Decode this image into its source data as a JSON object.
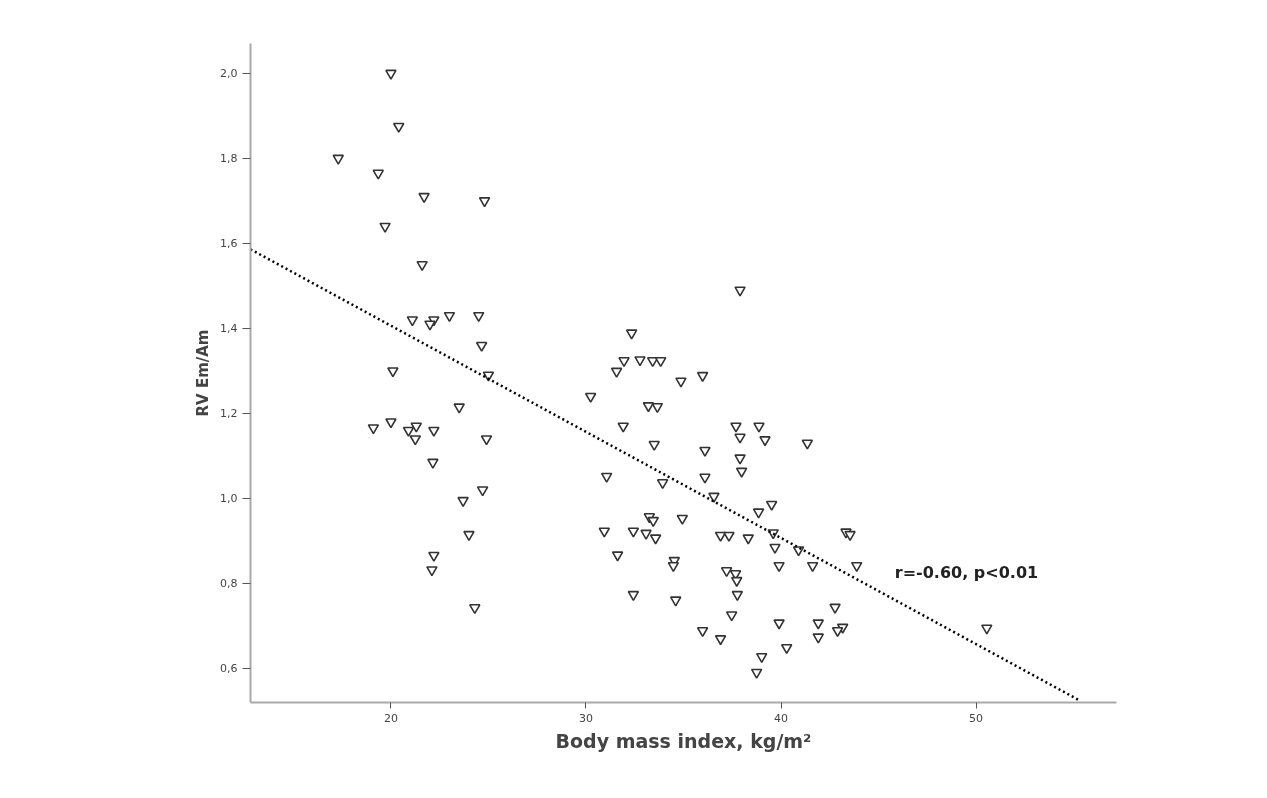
{
  "chart_data": {
    "type": "scatter",
    "xlabel": "Body mass index, kg/m²",
    "ylabel": "RV Em/Am",
    "annotations": [
      "r=-0.60, p<0.01"
    ],
    "xlim": [
      12.8,
      57.2
    ],
    "ylim": [
      0.52,
      2.07
    ],
    "xticks": [
      20,
      30,
      40,
      50
    ],
    "yticks": [
      {
        "value": 0.6,
        "label": "0,6"
      },
      {
        "value": 0.8,
        "label": "0,8"
      },
      {
        "value": 1.0,
        "label": "1,0"
      },
      {
        "value": 1.2,
        "label": "1,2"
      },
      {
        "value": 1.4,
        "label": "1,4"
      },
      {
        "value": 1.6,
        "label": "1,6"
      },
      {
        "value": 1.8,
        "label": "1,8"
      },
      {
        "value": 2.0,
        "label": "2,0"
      }
    ],
    "grid": false,
    "series": [
      {
        "color": "#333333",
        "marker": "triangle",
        "x": [
          20.0,
          20.4,
          17.3,
          19.35,
          21.7,
          24.8,
          19.7,
          21.6,
          21.1,
          22.2,
          22.0,
          23.0,
          24.5,
          24.65,
          20.1,
          25.0,
          23.5,
          19.1,
          20.0,
          20.9,
          21.3,
          21.25,
          22.2,
          24.9,
          22.15,
          24.7,
          23.7,
          24.0,
          22.2,
          22.1,
          24.3,
          37.9,
          32.34,
          31.95,
          32.77,
          33.42,
          33.83,
          31.57,
          34.87,
          35.98,
          30.24,
          33.2,
          33.66,
          31.91,
          37.69,
          38.87,
          37.9,
          39.18,
          41.35,
          33.5,
          36.1,
          37.9,
          37.98,
          31.06,
          36.1,
          33.93,
          36.56,
          39.52,
          38.85,
          33.25,
          33.45,
          34.94,
          30.94,
          32.43,
          33.08,
          33.57,
          36.9,
          37.33,
          38.32,
          39.6,
          39.69,
          40.9,
          43.33,
          43.54,
          31.62,
          34.53,
          34.48,
          39.9,
          41.62,
          43.88,
          37.21,
          37.67,
          37.73,
          32.43,
          34.6,
          37.76,
          42.77,
          37.47,
          39.9,
          41.91,
          43.16,
          42.9,
          41.91,
          35.98,
          36.9,
          40.29,
          39.01,
          38.75,
          50.55
        ],
        "values": [
          2.0,
          1.875,
          1.8,
          1.765,
          1.71,
          1.7,
          1.64,
          1.55,
          1.42,
          1.42,
          1.41,
          1.43,
          1.43,
          1.36,
          1.3,
          1.29,
          1.215,
          1.166,
          1.18,
          1.16,
          1.17,
          1.14,
          1.16,
          1.14,
          1.085,
          1.02,
          0.995,
          0.915,
          0.866,
          0.832,
          0.743,
          1.49,
          1.389,
          1.324,
          1.326,
          1.324,
          1.324,
          1.299,
          1.276,
          1.289,
          1.24,
          1.218,
          1.216,
          1.17,
          1.17,
          1.17,
          1.144,
          1.138,
          1.13,
          1.127,
          1.113,
          1.095,
          1.064,
          1.052,
          1.05,
          1.037,
          1.005,
          0.986,
          0.968,
          0.957,
          0.948,
          0.953,
          0.923,
          0.923,
          0.918,
          0.907,
          0.913,
          0.913,
          0.907,
          0.919,
          0.885,
          0.879,
          0.921,
          0.915,
          0.867,
          0.854,
          0.842,
          0.842,
          0.842,
          0.842,
          0.83,
          0.823,
          0.807,
          0.774,
          0.761,
          0.774,
          0.744,
          0.726,
          0.707,
          0.707,
          0.697,
          0.689,
          0.674,
          0.689,
          0.67,
          0.649,
          0.628,
          0.591,
          0.695
        ]
      },
      {
        "type": "line",
        "color": "#000000",
        "line_style": "dotted",
        "x": [
          12.8,
          55.3
        ],
        "values": [
          1.586,
          0.525
        ]
      }
    ]
  }
}
